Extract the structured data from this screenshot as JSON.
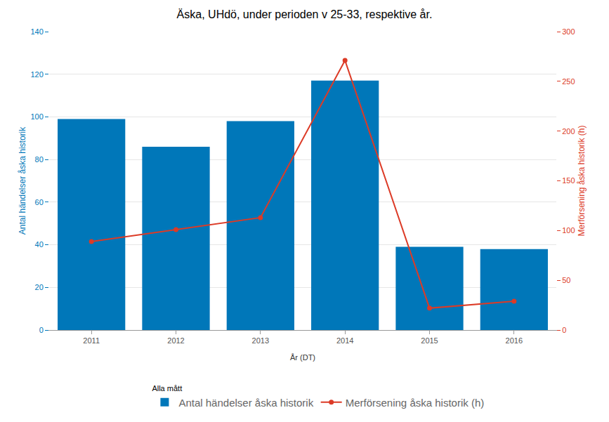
{
  "chart_data": {
    "type": "bar",
    "title": "Äska, UHdö, under perioden v 25-33, respektive år.",
    "x_label": "År (DT)",
    "y_label": "Antal händelser åska historik",
    "y2_label": "Merförsening åska historik (h)",
    "legend_title": "Alla mått",
    "categories": [
      "2011",
      "2012",
      "2013",
      "2014",
      "2015",
      "2016"
    ],
    "series": [
      {
        "name": "Antal händelser åska historik",
        "type": "bar",
        "color": "#0077b9",
        "values": [
          99,
          86,
          98,
          117,
          39,
          38
        ]
      },
      {
        "name": "Merförsening åska historik (h)",
        "type": "line",
        "color": "#dc3b27",
        "marker": "circle",
        "axis": "y2",
        "values": [
          89,
          101,
          113,
          271,
          22,
          29
        ]
      }
    ],
    "ylim": [
      0,
      140
    ],
    "yticks": [
      0,
      20,
      40,
      60,
      80,
      100,
      120,
      140
    ],
    "y2lim": [
      0,
      300
    ],
    "y2ticks": [
      0,
      50,
      100,
      150,
      200,
      250,
      300
    ],
    "grid": true,
    "legend": "bottom"
  }
}
